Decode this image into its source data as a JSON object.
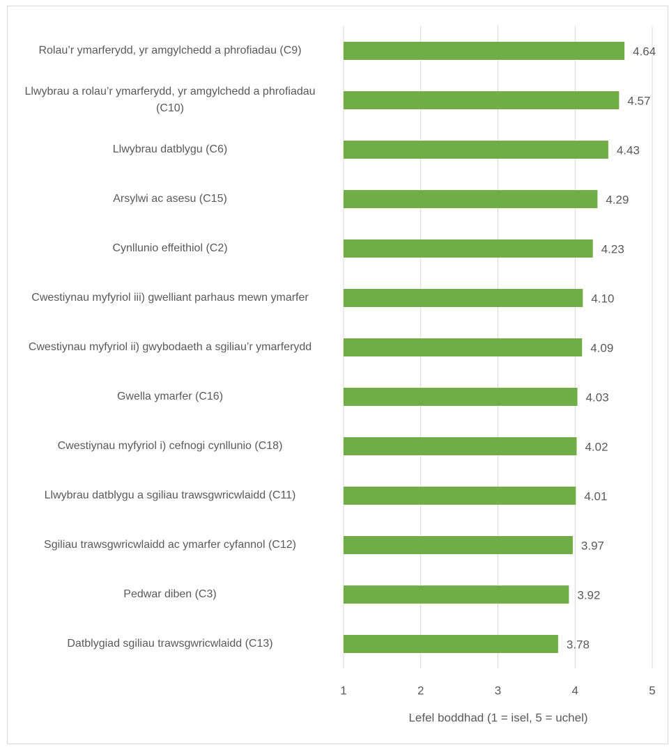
{
  "chart_data": {
    "type": "hbar",
    "categories": [
      "Rolau’r ymarferydd, yr amgylchedd a phrofiadau (C9)",
      "Llwybrau a rolau’r ymarferydd, yr amgylchedd a phrofiadau (C10)",
      "Llwybrau datblygu (C6)",
      "Arsylwi ac asesu (C15)",
      "Cynllunio effeithiol (C2)",
      "Cwestiynau myfyriol iii) gwelliant parhaus mewn ymarfer",
      "Cwestiynau myfyriol ii) gwybodaeth a sgiliau’r ymarferydd",
      "Gwella ymarfer (C16)",
      "Cwestiynau myfyriol i) cefnogi cynllunio (C18)",
      "Llwybrau datblygu a sgiliau trawsgwricwlaidd (C11)",
      "Sgiliau trawsgwricwlaidd ac ymarfer cyfannol (C12)",
      "Pedwar diben (C3)",
      "Datblygiad sgiliau trawsgwricwlaidd (C13)"
    ],
    "values": [
      4.64,
      4.57,
      4.43,
      4.29,
      4.23,
      4.1,
      4.09,
      4.03,
      4.02,
      4.01,
      3.97,
      3.92,
      3.78
    ],
    "value_labels": [
      "4.64",
      "4.57",
      "4.43",
      "4.29",
      "4.23",
      "4.10",
      "4.09",
      "4.03",
      "4.02",
      "4.01",
      "3.97",
      "3.92",
      "3.78"
    ],
    "color": "#70ad47",
    "xlabel": "Lefel boddhad (1 = isel, 5 = uchel)",
    "xlim": [
      1,
      5
    ],
    "xticks": [
      1,
      2,
      3,
      4,
      5
    ],
    "grid": true
  }
}
